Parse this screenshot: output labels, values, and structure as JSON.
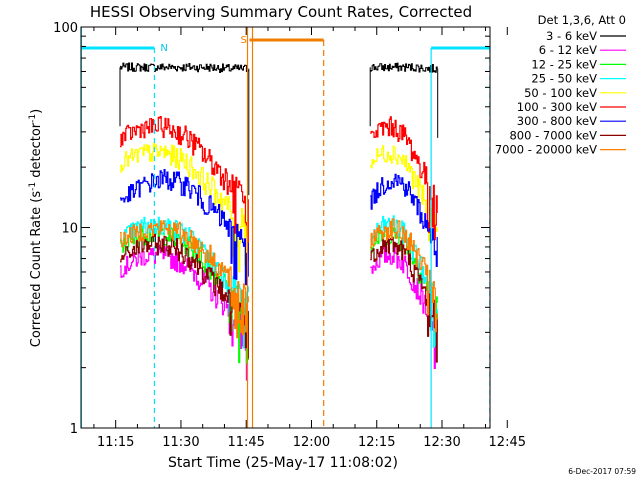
{
  "title": "HESSI Observing Summary Count Rates, Corrected",
  "footer_stamp": "6-Dec-2017 07:59",
  "legend_header": "Det 1,3,6, Att 0",
  "flags": {
    "night": "N",
    "saa": "S"
  },
  "chart_data": {
    "type": "line",
    "title": "HESSI Observing Summary Count Rates, Corrected",
    "xlabel": "Start Time (25-May-17 11:08:02)",
    "ylabel": "Corrected Count Rate (s⁻¹ detector⁻¹)",
    "ylabel_main": "Corrected Count Rate (s",
    "ylabel_sup1": "-1",
    "ylabel_mid": " detector",
    "ylabel_sup2": "-1",
    "ylabel_end": ")",
    "yscale": "log",
    "ylim": [
      1,
      100
    ],
    "xlim_minutes": [
      -7.97,
      86.03
    ],
    "x_ticks": [
      {
        "min": 0,
        "label": "11:15"
      },
      {
        "min": 15,
        "label": "11:30"
      },
      {
        "min": 30,
        "label": "11:45"
      },
      {
        "min": 45,
        "label": "12:00"
      },
      {
        "min": 60,
        "label": "12:15"
      },
      {
        "min": 75,
        "label": "12:30"
      },
      {
        "min": 90,
        "label": "12:45"
      }
    ],
    "y_ticks": [
      {
        "value": 1,
        "label": "1"
      },
      {
        "value": 10,
        "label": "10"
      },
      {
        "value": 100,
        "label": "100"
      }
    ],
    "legend_position": "outside-right",
    "segments_minutes": [
      [
        1,
        30.6
      ],
      [
        58.5,
        74
      ]
    ],
    "series": [
      {
        "name": "3 - 6 keV",
        "color": "#000000",
        "level": [
          63,
          63,
          63,
          63,
          63,
          62,
          62
        ]
      },
      {
        "name": "6 - 12 keV",
        "color": "#ff00ff",
        "level": [
          6.2,
          7.2,
          7.3,
          6.6,
          5.1,
          3.9,
          3.0
        ]
      },
      {
        "name": "12 - 25 keV",
        "color": "#00ff00",
        "level": [
          8.0,
          9.2,
          9.3,
          8.4,
          6.6,
          4.9,
          3.9
        ]
      },
      {
        "name": "25 - 50 keV",
        "color": "#00ffff",
        "level": [
          8.8,
          10.2,
          10.3,
          9.3,
          7.2,
          5.4,
          4.3
        ]
      },
      {
        "name": "50 - 100 keV",
        "color": "#ffff00",
        "level": [
          21,
          23.5,
          23.8,
          21.4,
          16.6,
          12.5,
          9.8
        ]
      },
      {
        "name": "100 - 300 keV",
        "color": "#ff0000",
        "level": [
          28,
          31.5,
          32,
          28.6,
          22.2,
          16.8,
          13.1
        ]
      },
      {
        "name": "300 - 800 keV",
        "color": "#0000ff",
        "level": [
          13.5,
          16.2,
          17.6,
          16.4,
          13,
          10,
          8
        ]
      },
      {
        "name": "800 - 7000 keV",
        "color": "#8b0000",
        "level": [
          7,
          8.2,
          8.3,
          7.5,
          5.8,
          4.4,
          3.4
        ]
      },
      {
        "name": "7000 - 20000 keV",
        "color": "#ff8000",
        "level": [
          8.7,
          9.7,
          10,
          9.2,
          7.4,
          5.6,
          4.3
        ]
      }
    ],
    "level_note_minutes": [
      1,
      6,
      11,
      16,
      21,
      26,
      30.5
    ],
    "night_periods_minutes": [
      [
        -7.9,
        8.9
      ],
      [
        72.5,
        86
      ]
    ],
    "saa_periods_minutes": [
      [
        30.3,
        47.8
      ]
    ]
  }
}
